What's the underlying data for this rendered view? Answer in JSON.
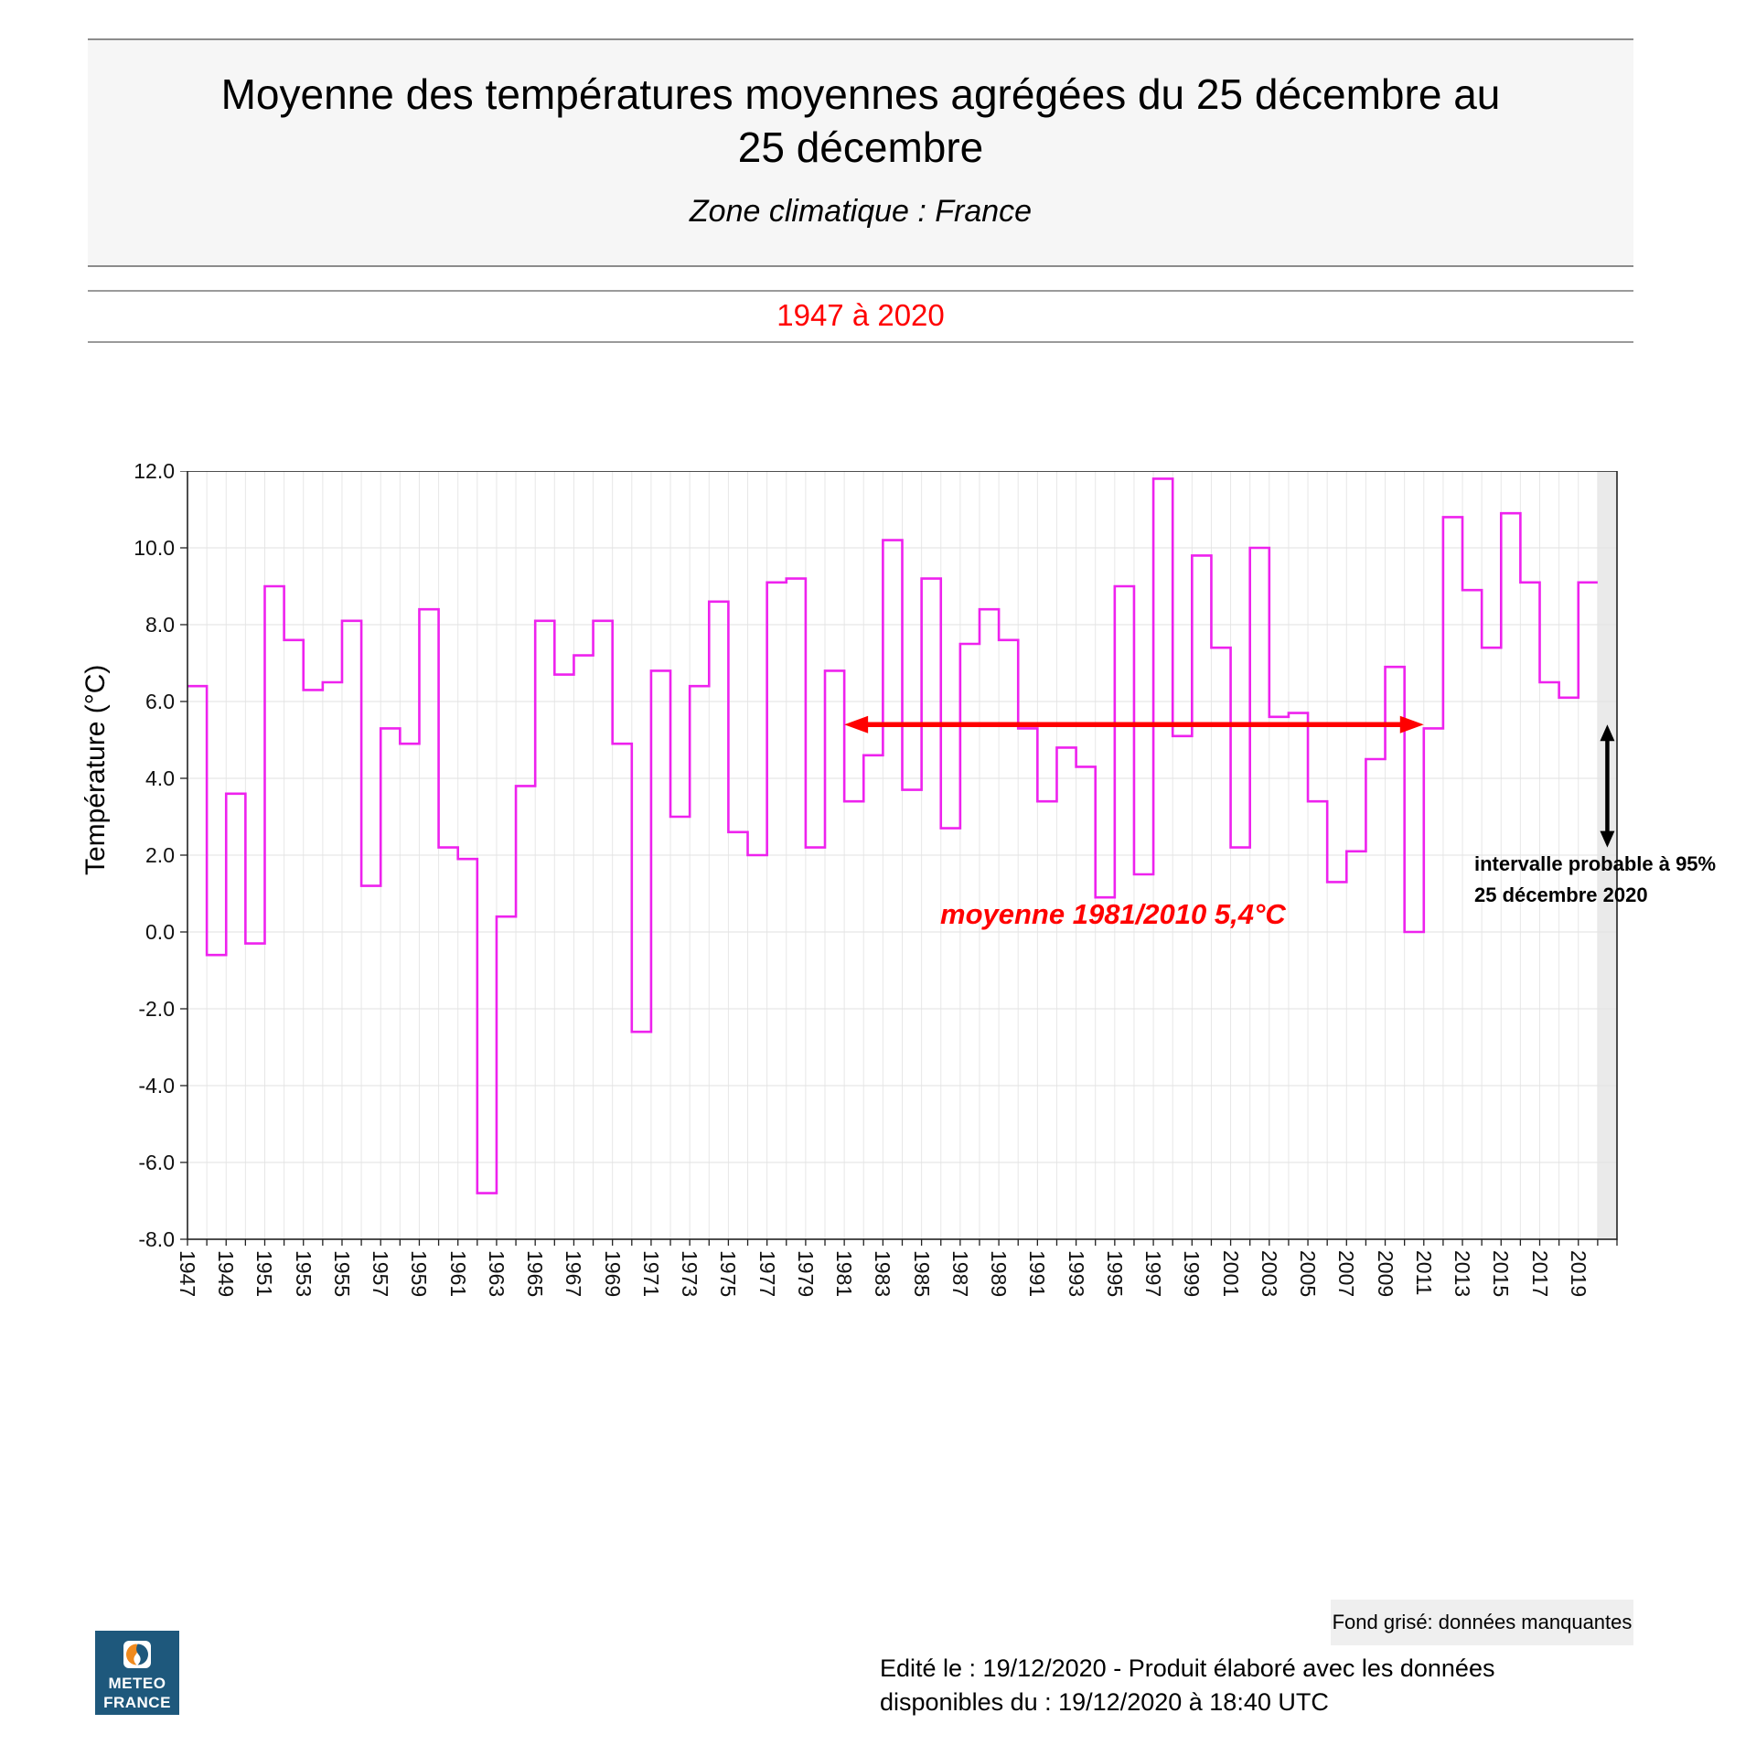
{
  "header": {
    "title_line1": "Moyenne des températures moyennes agrégées du 25 décembre au",
    "title_line2": "25 décembre",
    "subtitle": "Zone climatique : France",
    "period": "1947 à 2020"
  },
  "chart_data": {
    "type": "line",
    "style": "step",
    "line_color": "#ee22ee",
    "accent_red": "#ff0000",
    "missing_fill": "#eaeaea",
    "ylabel": "Température (°C)",
    "ylim": [
      -8,
      12
    ],
    "ytick_labels": [
      "12.0",
      "10.0",
      "8.0",
      "6.0",
      "4.0",
      "2.0",
      "0.0",
      "-2.0",
      "-4.0",
      "-6.0",
      "-8.0"
    ],
    "xtick_labels": [
      "1947",
      "1949",
      "1951",
      "1953",
      "1955",
      "1957",
      "1959",
      "1961",
      "1963",
      "1965",
      "1967",
      "1969",
      "1971",
      "1973",
      "1975",
      "1977",
      "1979",
      "1981",
      "1983",
      "1985",
      "1987",
      "1989",
      "1991",
      "1993",
      "1995",
      "1997",
      "1999",
      "2001",
      "2003",
      "2005",
      "2007",
      "2009",
      "2011",
      "2013",
      "2015",
      "2017",
      "2019"
    ],
    "x_start_year": 1947,
    "x_end_year_with_missing": 2020,
    "categories": [
      1947,
      1948,
      1949,
      1950,
      1951,
      1952,
      1953,
      1954,
      1955,
      1956,
      1957,
      1958,
      1959,
      1960,
      1961,
      1962,
      1963,
      1964,
      1965,
      1966,
      1967,
      1968,
      1969,
      1970,
      1971,
      1972,
      1973,
      1974,
      1975,
      1976,
      1977,
      1978,
      1979,
      1980,
      1981,
      1982,
      1983,
      1984,
      1985,
      1986,
      1987,
      1988,
      1989,
      1990,
      1991,
      1992,
      1993,
      1994,
      1995,
      1996,
      1997,
      1998,
      1999,
      2000,
      2001,
      2002,
      2003,
      2004,
      2005,
      2006,
      2007,
      2008,
      2009,
      2010,
      2011,
      2012,
      2013,
      2014,
      2015,
      2016,
      2017,
      2018,
      2019
    ],
    "values": [
      6.4,
      -0.6,
      3.6,
      -0.3,
      9.0,
      7.6,
      6.3,
      6.5,
      8.1,
      1.2,
      5.3,
      4.9,
      8.4,
      2.2,
      1.9,
      -6.8,
      0.4,
      3.8,
      8.1,
      6.7,
      7.2,
      8.1,
      4.9,
      -2.6,
      6.8,
      3.0,
      6.4,
      8.6,
      2.6,
      2.0,
      9.1,
      9.2,
      2.2,
      6.8,
      3.4,
      4.6,
      10.2,
      3.7,
      9.2,
      2.7,
      7.5,
      8.4,
      7.6,
      5.3,
      3.4,
      4.8,
      4.3,
      0.9,
      9.0,
      1.5,
      11.8,
      5.1,
      9.8,
      7.4,
      2.2,
      10.0,
      5.6,
      5.7,
      3.4,
      1.3,
      2.1,
      4.5,
      6.9,
      0.0,
      5.3,
      10.8,
      8.9,
      7.4,
      10.9,
      9.1,
      6.5,
      6.1,
      9.1
    ],
    "annotations": {
      "mean_line": {
        "label": "moyenne 1981/2010 5,4°C",
        "value": 5.4,
        "x_start_year": 1981,
        "x_end_year": 2010,
        "color": "#ff0000"
      },
      "interval_arrow": {
        "label_line1": "intervalle probable à 95%",
        "label_line2": "25 décembre 2020",
        "year": 2020,
        "from": 2.2,
        "to": 5.4,
        "color": "#000000"
      },
      "missing_year": 2020
    }
  },
  "footer": {
    "missing_note": "Fond grisé: données manquantes",
    "edited_line1": "Edité le : 19/12/2020 - Produit élaboré avec les données",
    "edited_line2": "disponibles du : 19/12/2020 à 18:40 UTC",
    "logo": {
      "line1": "METEO",
      "line2": "FRANCE"
    }
  }
}
